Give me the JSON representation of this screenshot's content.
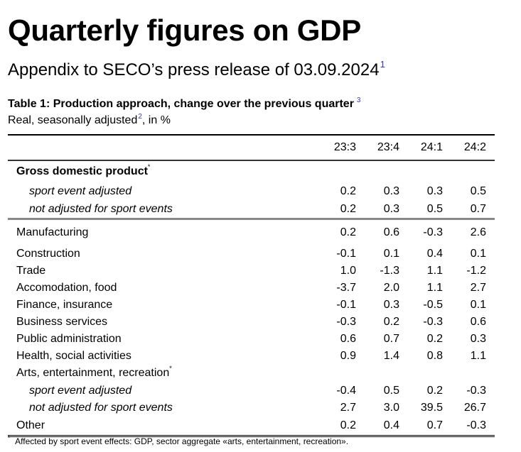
{
  "title": "Quarterly figures on GDP",
  "subtitle": {
    "text": "Appendix to SECO’s press release of 03.09.2024",
    "footnote_ref": "1"
  },
  "table": {
    "caption": "Table 1: Production approach, change over the previous quarter",
    "caption_footnote_ref": "3",
    "subcaption_before": "Real, seasonally adjusted",
    "subcaption_footnote_ref": "2",
    "subcaption_after": ", in %",
    "columns": [
      "23:3",
      "23:4",
      "24:1",
      "24:2"
    ],
    "gdp": {
      "label": "Gross domestic product",
      "marker": "*",
      "rows": [
        {
          "label": "sport event adjusted",
          "values": [
            "0.2",
            "0.3",
            "0.3",
            "0.5"
          ]
        },
        {
          "label": "not adjusted for sport events",
          "values": [
            "0.2",
            "0.3",
            "0.5",
            "0.7"
          ]
        }
      ]
    },
    "sectors": [
      {
        "label": "Manufacturing",
        "values": [
          "0.2",
          "0.6",
          "-0.3",
          "2.6"
        ]
      },
      {
        "label": "Construction",
        "values": [
          "-0.1",
          "0.1",
          "0.4",
          "0.1"
        ]
      },
      {
        "label": "Trade",
        "values": [
          "1.0",
          "-1.3",
          "1.1",
          "-1.2"
        ]
      },
      {
        "label": "Accomodation, food",
        "values": [
          "-3.7",
          "2.0",
          "1.1",
          "2.7"
        ]
      },
      {
        "label": "Finance, insurance",
        "values": [
          "-0.1",
          "0.3",
          "-0.5",
          "0.1"
        ]
      },
      {
        "label": "Business services",
        "values": [
          "-0.3",
          "0.2",
          "-0.3",
          "0.6"
        ]
      },
      {
        "label": "Public administration",
        "values": [
          "0.6",
          "0.7",
          "0.2",
          "0.3"
        ]
      },
      {
        "label": "Health, social activities",
        "values": [
          "0.9",
          "1.4",
          "0.8",
          "1.1"
        ]
      }
    ],
    "arts": {
      "label": "Arts, entertainment, recreation",
      "marker": "*",
      "rows": [
        {
          "label": "sport event adjusted",
          "values": [
            "-0.4",
            "0.5",
            "0.2",
            "-0.3"
          ]
        },
        {
          "label": "not adjusted for sport events",
          "values": [
            "2.7",
            "3.0",
            "39.5",
            "26.7"
          ]
        }
      ]
    },
    "other": {
      "label": "Other",
      "values": [
        "0.2",
        "0.4",
        "0.7",
        "-0.3"
      ]
    }
  },
  "footnote": {
    "marker": "*",
    "text": "Affected by sport event effects: GDP, sector aggregate «arts, entertainment, recreation»."
  },
  "colors": {
    "footnote_ref": "#3333cc",
    "text": "#000000"
  }
}
